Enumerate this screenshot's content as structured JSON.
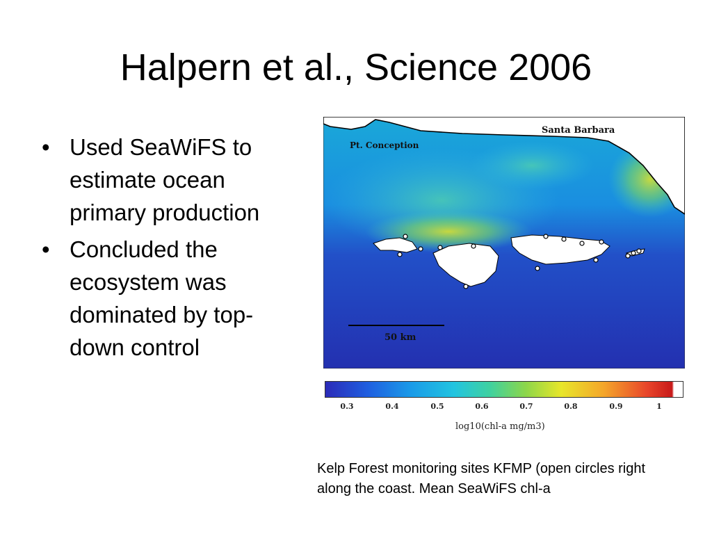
{
  "slide": {
    "title": "Halpern et al., Science 2006",
    "bullets": [
      {
        "marker": "•",
        "text": "Used SeaWiFS to estimate ocean primary production"
      },
      {
        "marker": "•",
        "text": "Concluded the ecosystem was dominated by top-down control"
      }
    ],
    "caption": "Kelp Forest monitoring sites KFMP (open circles right along the coast. Mean SeaWiFS chl-a"
  },
  "map": {
    "labels": {
      "santa_barbara": "Santa Barbara",
      "pt_conception": "Pt. Conception",
      "scale": "50 km"
    },
    "colorbar": {
      "ticks": [
        "0.3",
        "0.4",
        "0.5",
        "0.6",
        "0.7",
        "0.8",
        "0.9",
        "1"
      ],
      "label": "log10(chl-a mg/m3)"
    },
    "colors": {
      "ocean_deep": "#2330b0",
      "ocean_mid": "#1a8ee0",
      "coastal_high": "#e8e030",
      "land": "#ffffff"
    }
  }
}
